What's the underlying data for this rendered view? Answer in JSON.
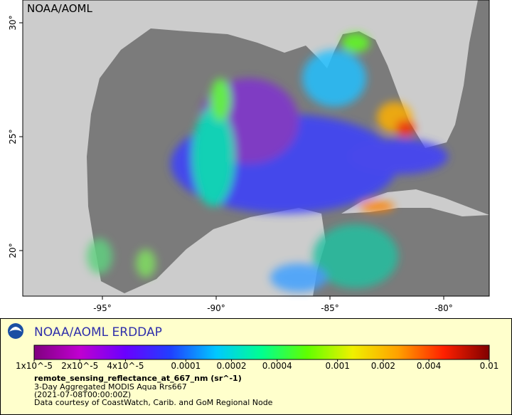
{
  "map": {
    "title": "NOAA/AOML",
    "xlim": [
      -98.5,
      -78
    ],
    "ylim": [
      18,
      31
    ],
    "xticks": [
      {
        "value": -95,
        "label": "-95°"
      },
      {
        "value": -90,
        "label": "-90°"
      },
      {
        "value": -85,
        "label": "-85°"
      },
      {
        "value": -80,
        "label": "-80°"
      }
    ],
    "yticks": [
      {
        "value": 20,
        "label": "20°"
      },
      {
        "value": 25,
        "label": "25°"
      },
      {
        "value": 30,
        "label": "30°"
      }
    ]
  },
  "legend": {
    "brand": "NOAA/AOML ERDDAP",
    "colorbar": {
      "scale": "log",
      "lim": [
        1e-05,
        0.01
      ],
      "colors": [
        "#80007f",
        "#c000d0",
        "#6a00ff",
        "#2040ff",
        "#00c8ff",
        "#00ff90",
        "#60ff00",
        "#f0f000",
        "#ffa000",
        "#ff2000",
        "#800000"
      ],
      "ticks": [
        {
          "value": 1e-05,
          "label": "1x10^-5"
        },
        {
          "value": 2e-05,
          "label": "2x10^-5"
        },
        {
          "value": 4e-05,
          "label": "4x10^-5"
        },
        0.0001,
        0.0002,
        0.0004,
        0.001,
        0.002,
        0.004,
        0.01
      ]
    },
    "variable": "remote_sensing_reflectance_at_667_nm (sr^-1)",
    "lines": [
      "3-Day Aggregated MODIS Aqua Rrs667",
      "(2021-07-08T00:00:00Z)",
      "Data courtesy of CoastWatch, Carib. and GoM Regional Node"
    ]
  }
}
